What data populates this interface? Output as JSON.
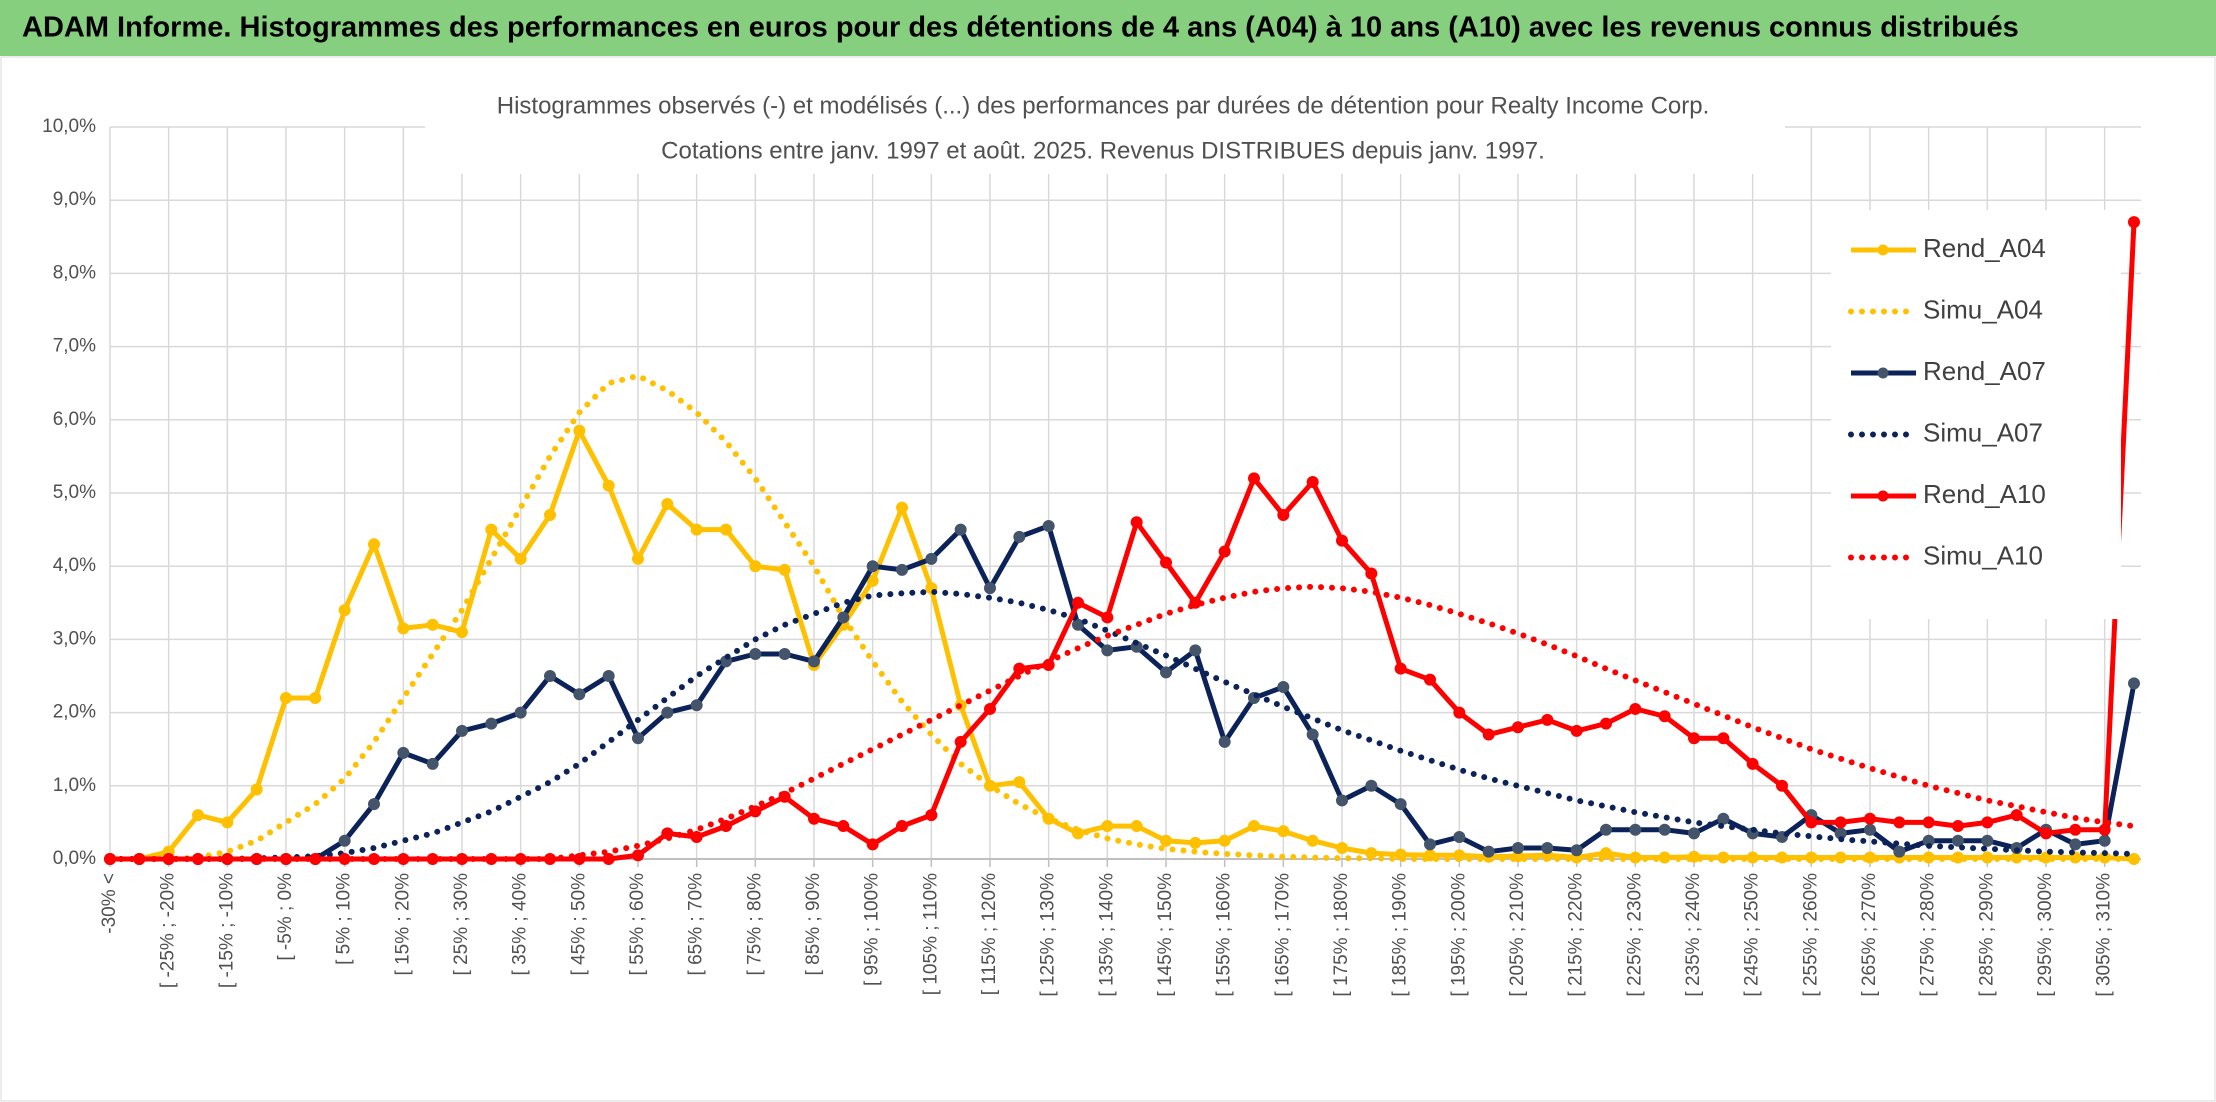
{
  "header": {
    "title": "ADAM Informe. Histogrammes des performances en euros pour des détentions de 4 ans (A04) à 10 ans (A10) avec les revenus connus distribués"
  },
  "chart_data": {
    "type": "line",
    "title_lines": [
      "Histogrammes observés (-) et modélisés (...) des performances par durées de détention pour Realty Income Corp.",
      "Cotations entre janv. 1997 et août. 2025. Revenus DISTRIBUES depuis janv. 1997."
    ],
    "categories": [
      "-30% <",
      null,
      "[ -25% ; -20%",
      null,
      "[ -15% ; -10%",
      null,
      "[ -5% ; 0%",
      null,
      "[ 5% ; 10%",
      null,
      "[ 15% ; 20%",
      null,
      "[ 25% ; 30%",
      null,
      "[ 35% ; 40%",
      null,
      "[ 45% ; 50%",
      null,
      "[ 55% ; 60%",
      null,
      "[ 65% ; 70%",
      null,
      "[ 75% ; 80%",
      null,
      "[ 85% ; 90%",
      null,
      "[ 95% ; 100%",
      null,
      "[ 105% ; 110%",
      null,
      "[ 115% ; 120%",
      null,
      "[ 125% ; 130%",
      null,
      "[ 135% ; 140%",
      null,
      "[ 145% ; 150%",
      null,
      "[ 155% ; 160%",
      null,
      "[ 165% ; 170%",
      null,
      "[ 175% ; 180%",
      null,
      "[ 185% ; 190%",
      null,
      "[ 195% ; 200%",
      null,
      "[ 205% ; 210%",
      null,
      "[ 215% ; 220%",
      null,
      "[ 225% ; 230%",
      null,
      "[ 235% ; 240%",
      null,
      "[ 245% ; 250%",
      null,
      "[ 255% ; 260%",
      null,
      "[ 265% ; 270%",
      null,
      "[ 275% ; 280%",
      null,
      "[ 285% ; 290%",
      null,
      "[ 295% ; 300%",
      null,
      "[ 305% ; 310%",
      null
    ],
    "series": [
      {
        "name": "Rend_A04",
        "color": "#FFC000",
        "style": "solid",
        "marker": true,
        "marker_color": "#FFC000",
        "values": [
          0,
          0,
          0.1,
          0.6,
          0.5,
          0.95,
          2.2,
          2.2,
          3.4,
          4.3,
          3.15,
          3.2,
          3.1,
          4.5,
          4.1,
          4.7,
          5.85,
          5.1,
          4.1,
          4.85,
          4.5,
          4.5,
          4.0,
          3.95,
          2.65,
          3.2,
          3.8,
          4.8,
          3.7,
          2.1,
          1.0,
          1.05,
          0.55,
          0.35,
          0.45,
          0.45,
          0.25,
          0.22,
          0.25,
          0.45,
          0.38,
          0.25,
          0.15,
          0.08,
          0.06,
          0.05,
          0.05,
          0.03,
          0.04,
          0.05,
          0.02,
          0.08,
          0.02,
          0.02,
          0.03,
          0.02,
          0.02,
          0.02,
          0.02,
          0.02,
          0.02,
          0.02,
          0.02,
          0.02,
          0.02,
          0.02,
          0.02,
          0.02,
          0.02,
          0
        ]
      },
      {
        "name": "Simu_A04",
        "color": "#FFC000",
        "style": "dotted",
        "marker": false,
        "values": [
          0,
          0,
          0,
          0.02,
          0.1,
          0.25,
          0.5,
          0.75,
          1.1,
          1.6,
          2.2,
          2.8,
          3.4,
          4.1,
          4.8,
          5.5,
          6.1,
          6.5,
          6.6,
          6.4,
          6.1,
          5.7,
          5.2,
          4.6,
          4.0,
          3.3,
          2.7,
          2.15,
          1.7,
          1.3,
          1.0,
          0.75,
          0.55,
          0.4,
          0.28,
          0.2,
          0.14,
          0.1,
          0.07,
          0.05,
          0.03,
          0.02,
          0.01,
          0.01,
          0,
          0,
          0,
          0,
          0,
          0,
          0,
          0,
          0,
          0,
          0,
          0,
          0,
          0,
          0,
          0,
          0,
          0,
          0,
          0,
          0,
          0,
          0,
          0,
          0,
          0
        ]
      },
      {
        "name": "Rend_A07",
        "color": "#0B2359",
        "style": "solid",
        "marker": true,
        "marker_color": "#44546A",
        "values": [
          0,
          0,
          0,
          0,
          0,
          0,
          0,
          0,
          0.25,
          0.75,
          1.45,
          1.3,
          1.75,
          1.85,
          2.0,
          2.5,
          2.25,
          2.5,
          1.65,
          2.0,
          2.1,
          2.7,
          2.8,
          2.8,
          2.7,
          3.3,
          4.0,
          3.95,
          4.1,
          4.5,
          3.7,
          4.4,
          4.55,
          3.2,
          2.85,
          2.9,
          2.55,
          2.85,
          1.6,
          2.2,
          2.35,
          1.7,
          0.8,
          1.0,
          0.75,
          0.2,
          0.3,
          0.1,
          0.15,
          0.15,
          0.12,
          0.4,
          0.4,
          0.4,
          0.35,
          0.55,
          0.35,
          0.3,
          0.6,
          0.35,
          0.4,
          0.1,
          0.25,
          0.25,
          0.25,
          0.15,
          0.4,
          0.2,
          0.25,
          2.4
        ]
      },
      {
        "name": "Simu_A07",
        "color": "#0B2359",
        "style": "dotted",
        "marker": false,
        "values": [
          0,
          0,
          0,
          0,
          0,
          0.01,
          0.02,
          0.04,
          0.08,
          0.15,
          0.25,
          0.35,
          0.5,
          0.65,
          0.85,
          1.05,
          1.3,
          1.6,
          1.9,
          2.2,
          2.5,
          2.75,
          3.0,
          3.2,
          3.35,
          3.5,
          3.6,
          3.63,
          3.65,
          3.62,
          3.57,
          3.5,
          3.4,
          3.28,
          3.12,
          2.95,
          2.78,
          2.6,
          2.42,
          2.25,
          2.08,
          1.92,
          1.76,
          1.62,
          1.48,
          1.35,
          1.22,
          1.1,
          1.0,
          0.9,
          0.8,
          0.72,
          0.64,
          0.57,
          0.5,
          0.45,
          0.4,
          0.35,
          0.31,
          0.27,
          0.24,
          0.21,
          0.18,
          0.16,
          0.14,
          0.12,
          0.1,
          0.09,
          0.08,
          0.07
        ]
      },
      {
        "name": "Rend_A10",
        "color": "#FF0000",
        "style": "solid",
        "marker": true,
        "marker_color": "#FF0000",
        "values": [
          0,
          0,
          0,
          0,
          0,
          0,
          0,
          0,
          0,
          0,
          0,
          0,
          0,
          0,
          0,
          0,
          0,
          0,
          0.05,
          0.35,
          0.3,
          0.45,
          0.65,
          0.85,
          0.55,
          0.45,
          0.2,
          0.45,
          0.6,
          1.6,
          2.05,
          2.6,
          2.65,
          3.5,
          3.3,
          4.6,
          4.05,
          3.5,
          4.2,
          5.2,
          4.7,
          5.15,
          4.35,
          3.9,
          2.6,
          2.45,
          2.0,
          1.7,
          1.8,
          1.9,
          1.75,
          1.85,
          2.05,
          1.95,
          1.65,
          1.65,
          1.3,
          1.0,
          0.5,
          0.5,
          0.55,
          0.5,
          0.5,
          0.45,
          0.5,
          0.6,
          0.35,
          0.4,
          0.4,
          8.7
        ]
      },
      {
        "name": "Simu_A10",
        "color": "#FF0000",
        "style": "dotted",
        "marker": false,
        "values": [
          0,
          0,
          0,
          0,
          0,
          0,
          0,
          0,
          0,
          0,
          0,
          0,
          0,
          0,
          0,
          0,
          0.05,
          0.1,
          0.18,
          0.28,
          0.4,
          0.55,
          0.72,
          0.9,
          1.1,
          1.3,
          1.5,
          1.7,
          1.9,
          2.1,
          2.3,
          2.5,
          2.7,
          2.88,
          3.05,
          3.2,
          3.35,
          3.47,
          3.57,
          3.65,
          3.7,
          3.72,
          3.7,
          3.65,
          3.57,
          3.47,
          3.35,
          3.22,
          3.08,
          2.93,
          2.77,
          2.6,
          2.44,
          2.28,
          2.12,
          1.96,
          1.8,
          1.65,
          1.5,
          1.37,
          1.24,
          1.12,
          1.0,
          0.9,
          0.8,
          0.72,
          0.64,
          0.56,
          0.5,
          0.45
        ]
      }
    ],
    "ylim": [
      0,
      10
    ],
    "yticks": [
      {
        "value": 0,
        "label": "0,0%"
      },
      {
        "value": 1,
        "label": "1,0%"
      },
      {
        "value": 2,
        "label": "2,0%"
      },
      {
        "value": 3,
        "label": "3,0%"
      },
      {
        "value": 4,
        "label": "4,0%"
      },
      {
        "value": 5,
        "label": "5,0%"
      },
      {
        "value": 6,
        "label": "6,0%"
      },
      {
        "value": 7,
        "label": "7,0%"
      },
      {
        "value": 8,
        "label": "8,0%"
      },
      {
        "value": 9,
        "label": "9,0%"
      },
      {
        "value": 10,
        "label": "10,0%"
      }
    ],
    "grid": true,
    "legend": "right"
  }
}
